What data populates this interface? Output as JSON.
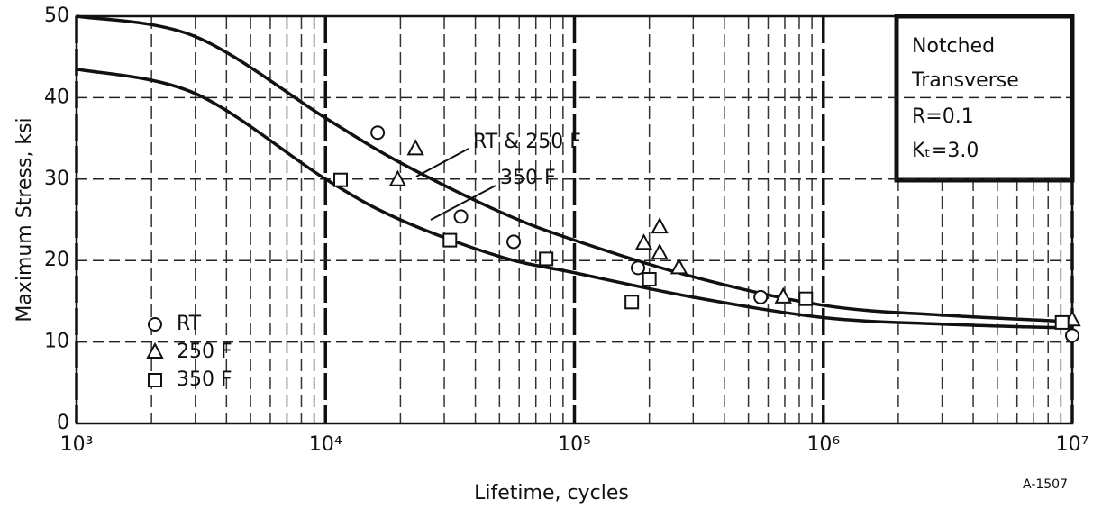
{
  "chart_data": {
    "type": "scatter",
    "xlabel": "Lifetime, cycles",
    "ylabel": "Maximum Stress, ksi",
    "xscale": "log",
    "xlim": [
      1000,
      10000000
    ],
    "xticks": [
      {
        "value": 1000,
        "label": "10³"
      },
      {
        "value": 10000,
        "label": "10⁴"
      },
      {
        "value": 100000,
        "label": "10⁵"
      },
      {
        "value": 1000000,
        "label": "10⁶"
      },
      {
        "value": 10000000,
        "label": "10⁷"
      }
    ],
    "ylim": [
      0,
      50
    ],
    "yticks": [
      0,
      10,
      20,
      30,
      40,
      50
    ],
    "grid": true,
    "legend": "lower left",
    "series": [
      {
        "name": "RT",
        "marker": "circle",
        "color": "#111111",
        "x": [
          16200,
          35000,
          57000,
          180000,
          560000,
          10000000
        ],
        "values": [
          35.7,
          25.4,
          22.3,
          19.1,
          15.5,
          10.8
        ]
      },
      {
        "name": "250 F",
        "marker": "triangle",
        "color": "#111111",
        "x": [
          19500,
          23000,
          190000,
          220000,
          220000,
          263000,
          690000,
          10000000
        ],
        "values": [
          29.9,
          33.7,
          22.1,
          24.1,
          20.9,
          19.1,
          15.5,
          12.7
        ]
      },
      {
        "name": "350 F",
        "marker": "square",
        "color": "#111111",
        "x": [
          11500,
          31600,
          77000,
          170000,
          200000,
          850000,
          9100000
        ],
        "values": [
          29.9,
          22.5,
          20.2,
          14.9,
          17.7,
          15.3,
          12.4
        ]
      }
    ],
    "curves": [
      {
        "color": "#111111",
        "x": [
          1000,
          3000,
          10000,
          20000,
          50000,
          100000,
          300000,
          1000000,
          3000000,
          10000000
        ],
        "values": [
          50,
          47.5,
          37.5,
          32,
          26,
          22.5,
          18,
          14.5,
          13.3,
          12.5
        ]
      },
      {
        "color": "#111111",
        "x": [
          1000,
          3000,
          10000,
          20000,
          50000,
          100000,
          300000,
          1000000,
          3000000,
          10000000
        ],
        "values": [
          43.5,
          40.5,
          30,
          25,
          20.5,
          18.5,
          15.5,
          13,
          12.2,
          11.7
        ]
      }
    ],
    "annotations": [
      "RT & 250 F",
      "350 F"
    ],
    "info_box": [
      "Notched",
      "Transverse",
      "R=0.1",
      "Kₜ=3.0"
    ],
    "figure_id": "A-1507"
  }
}
